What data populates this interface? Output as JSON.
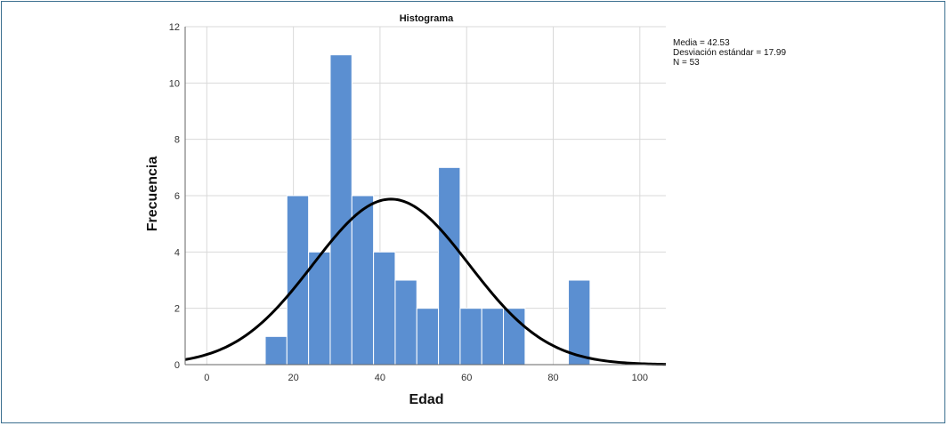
{
  "chart_data": {
    "type": "bar",
    "title": "Histograma",
    "xlabel": "Edad",
    "ylabel": "Frecuencia",
    "xlim": [
      -5,
      106
    ],
    "ylim": [
      0,
      12
    ],
    "xticks": [
      0,
      20,
      40,
      60,
      80,
      100
    ],
    "yticks": [
      0,
      2,
      4,
      6,
      8,
      10,
      12
    ],
    "grid": true,
    "bin_width": 5,
    "bins": [
      {
        "x0": 13.5,
        "x1": 18.5,
        "count": 1
      },
      {
        "x0": 18.5,
        "x1": 23.5,
        "count": 6
      },
      {
        "x0": 23.5,
        "x1": 28.5,
        "count": 4
      },
      {
        "x0": 28.5,
        "x1": 33.5,
        "count": 11
      },
      {
        "x0": 33.5,
        "x1": 38.5,
        "count": 6
      },
      {
        "x0": 38.5,
        "x1": 43.5,
        "count": 4
      },
      {
        "x0": 43.5,
        "x1": 48.5,
        "count": 3
      },
      {
        "x0": 48.5,
        "x1": 53.5,
        "count": 2
      },
      {
        "x0": 53.5,
        "x1": 58.5,
        "count": 7
      },
      {
        "x0": 58.5,
        "x1": 63.5,
        "count": 2
      },
      {
        "x0": 63.5,
        "x1": 68.5,
        "count": 2
      },
      {
        "x0": 68.5,
        "x1": 73.5,
        "count": 2
      },
      {
        "x0": 83.5,
        "x1": 88.5,
        "count": 3
      }
    ],
    "normal_curve": {
      "mean": 42.53,
      "sd": 17.99,
      "n": 53
    },
    "stats_lines": [
      "Media = 42.53",
      "Desviación estándar = 17.99",
      "N = 53"
    ],
    "colors": {
      "bar": "#5b8fd1",
      "bar_edge": "#ffffff",
      "curve": "#000000",
      "grid": "#d9d9d9"
    }
  }
}
